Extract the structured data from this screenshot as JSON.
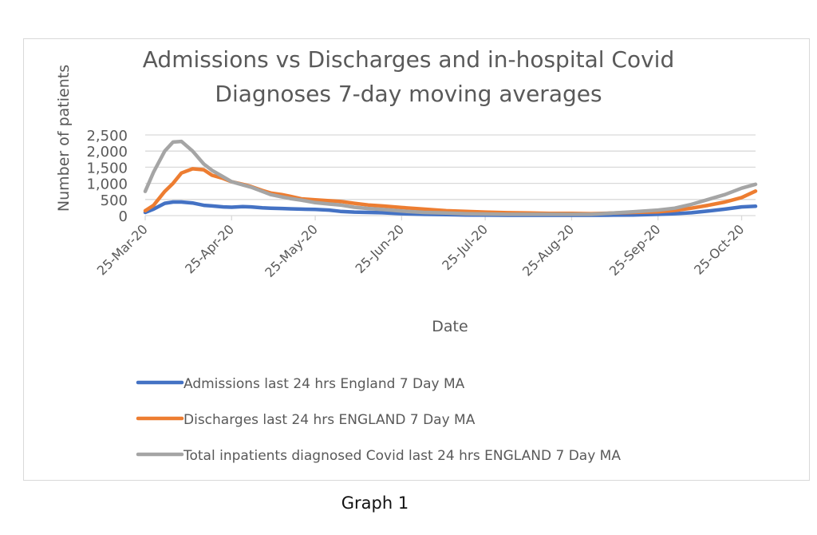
{
  "caption": "Graph 1",
  "chart_data": {
    "type": "line",
    "title_lines": [
      "Admissions vs Discharges and in-hospital Covid",
      "Diagnoses 7-day moving averages"
    ],
    "xlabel": "Date",
    "ylabel": "Number of patients",
    "ylim": [
      0,
      2500
    ],
    "yticks": [
      0,
      500,
      1000,
      1500,
      2000,
      2500
    ],
    "ytick_labels": [
      "0",
      "500",
      "1,000",
      "1,500",
      "2,000",
      "2,500"
    ],
    "xlim_days": [
      0,
      219
    ],
    "xticks_days": [
      0,
      31,
      61,
      92,
      122,
      153,
      184,
      214
    ],
    "xtick_labels": [
      "25-Mar-20",
      "25-Apr-20",
      "25-May-20",
      "25-Jun-20",
      "25-Jul-20",
      "25-Aug-20",
      "25-Sep-20",
      "25-Oct-20"
    ],
    "grid": true,
    "legend_position": "bottom",
    "x_days": [
      0,
      3,
      7,
      10,
      13,
      17,
      21,
      24,
      28,
      31,
      35,
      38,
      42,
      45,
      49,
      52,
      56,
      61,
      66,
      70,
      75,
      80,
      85,
      92,
      100,
      108,
      115,
      122,
      130,
      138,
      145,
      153,
      160,
      168,
      175,
      184,
      190,
      196,
      202,
      208,
      214,
      219
    ],
    "series": [
      {
        "name": "Admissions last 24 hrs England 7 Day MA",
        "color": "#4472c4",
        "values": [
          100,
          200,
          380,
          420,
          420,
          390,
          320,
          300,
          270,
          260,
          280,
          270,
          240,
          230,
          220,
          210,
          200,
          190,
          170,
          130,
          110,
          100,
          90,
          60,
          40,
          30,
          20,
          15,
          10,
          10,
          10,
          10,
          10,
          15,
          20,
          40,
          60,
          90,
          140,
          200,
          270,
          290
        ]
      },
      {
        "name": "Discharges last 24 hrs ENGLAND 7 Day MA",
        "color": "#ed7d31",
        "values": [
          150,
          320,
          750,
          1000,
          1320,
          1450,
          1420,
          1250,
          1150,
          1050,
          970,
          900,
          780,
          700,
          650,
          600,
          520,
          490,
          460,
          440,
          380,
          330,
          300,
          250,
          200,
          150,
          130,
          110,
          90,
          80,
          70,
          70,
          60,
          80,
          100,
          120,
          160,
          230,
          320,
          420,
          560,
          760
        ]
      },
      {
        "name": "Total inpatients diagnosed Covid last 24 hrs ENGLAND 7 Day MA",
        "color": "#a5a5a5",
        "values": [
          750,
          1350,
          2000,
          2280,
          2300,
          2000,
          1600,
          1400,
          1200,
          1050,
          950,
          880,
          750,
          650,
          580,
          530,
          480,
          400,
          360,
          330,
          260,
          220,
          190,
          140,
          100,
          80,
          60,
          50,
          40,
          40,
          40,
          40,
          40,
          80,
          120,
          170,
          230,
          350,
          500,
          650,
          850,
          970
        ]
      }
    ]
  }
}
